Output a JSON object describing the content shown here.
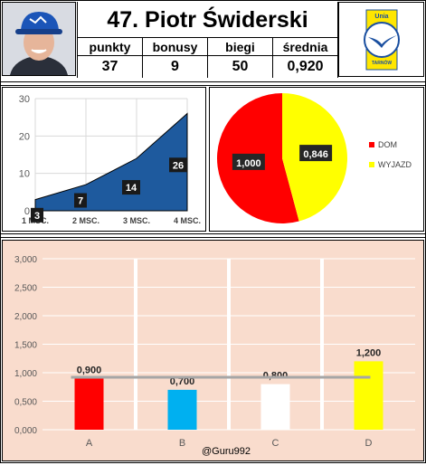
{
  "rider": {
    "title": "47. Piotr Świderski",
    "stats": [
      {
        "label": "punkty",
        "value": "37"
      },
      {
        "label": "bonusy",
        "value": "9"
      },
      {
        "label": "biegi",
        "value": "50"
      },
      {
        "label": "średnia",
        "value": "0,920"
      }
    ]
  },
  "logo": {
    "top_text": "Unia",
    "bottom_text": "TARNÓW"
  },
  "watermark": "@Guru992",
  "chart_data": [
    {
      "type": "area",
      "categories": [
        "1 MSC.",
        "2 MSC.",
        "3 MSC.",
        "4 MSC."
      ],
      "values": [
        3,
        7,
        14,
        26
      ],
      "ylim": [
        0,
        30
      ],
      "yticks": [
        "0",
        "10",
        "20",
        "30"
      ],
      "grid": true,
      "color": "#1e5a9e"
    },
    {
      "type": "pie",
      "labels": [
        "DOM",
        "WYJAZD"
      ],
      "values": [
        1.0,
        0.846
      ],
      "value_labels": [
        "1,000",
        "0,846"
      ],
      "colors": [
        "#ff0000",
        "#ffff00"
      ],
      "legend": "right"
    },
    {
      "type": "bar",
      "categories": [
        "A",
        "B",
        "C",
        "D"
      ],
      "values": [
        0.9,
        0.7,
        0.8,
        1.2
      ],
      "value_labels": [
        "0,900",
        "0,700",
        "0,800",
        "1,200"
      ],
      "colors": [
        "#ff0000",
        "#00b0f0",
        "#ffffff",
        "#ffff00"
      ],
      "reference_line": 0.92,
      "ylim": [
        0,
        3
      ],
      "yticks": [
        "0,000",
        "0,500",
        "1,000",
        "1,500",
        "2,000",
        "2,500",
        "3,000"
      ],
      "grid": true
    }
  ]
}
